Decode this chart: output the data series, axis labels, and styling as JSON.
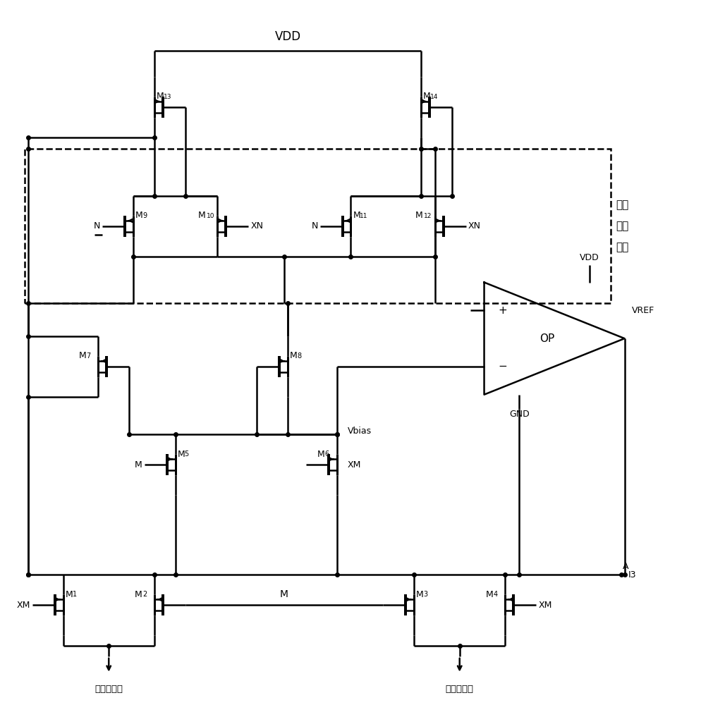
{
  "bg_color": "#ffffff",
  "line_color": "#000000",
  "lw": 1.8,
  "fs": 10,
  "fig_width": 9.95,
  "fig_height": 10.0,
  "vdd_label": "VDD",
  "vref_label": "VREF",
  "vbias_label": "Vbias",
  "gnd_label": "GND",
  "op_label": "OP",
  "nodeA_label": "A",
  "i3_label": "I3",
  "mismatch_label": [
    "失配",
    "校正",
    "单元"
  ],
  "in1_label": "第一输入端",
  "in2_label": "第二输入端",
  "M_label": "M",
  "N_label": "N",
  "XN_label": "XN",
  "XM_label": "XM"
}
